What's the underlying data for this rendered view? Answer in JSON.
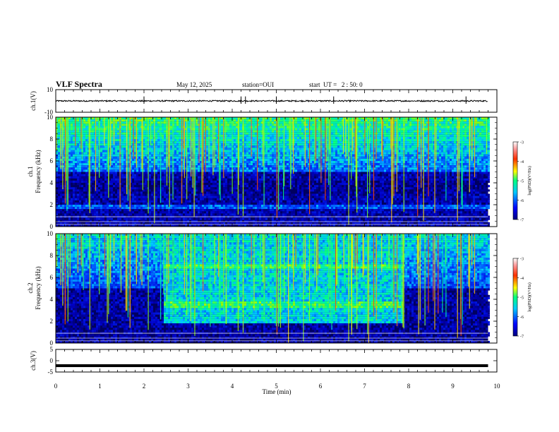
{
  "header": {
    "title": "VLF Spectra",
    "date": "May 12, 2025",
    "station": "station=OUI",
    "start": "start  UT =   2 : 50: 0"
  },
  "chart_data": [
    {
      "type": "line",
      "panel": "ch1-waveform",
      "ylabel": "ch.1(V)",
      "ylim": [
        -10,
        10
      ],
      "y_ticks": [
        "10",
        "-10"
      ],
      "xlim": [
        0,
        10
      ],
      "baseline": 0,
      "description_values": {
        "typical_amplitude": 0.6,
        "spikes_at_min": [
          2.0,
          4.2,
          4.3,
          5.0,
          6.3,
          9.3
        ]
      }
    },
    {
      "type": "heatmap",
      "panel": "ch1-spectrogram",
      "ylabel_line1": "ch.1",
      "ylabel_line2": "Frequency  (kHz)",
      "ylim": [
        0,
        10
      ],
      "y_ticks": [
        "0",
        "2",
        "4",
        "6",
        "8",
        "10"
      ],
      "xlim": [
        0,
        10
      ],
      "data_end_min": 9.8,
      "colorbar": {
        "label": "log(PSD)(V²/Hz)",
        "range": [
          -7,
          -3
        ],
        "ticks": [
          "-3",
          "-4",
          "-5",
          "-6",
          "-7"
        ]
      },
      "features": {
        "hiss_band_khz": [
          5,
          10
        ],
        "lower_band_khz": [
          1.5,
          2.0
        ]
      }
    },
    {
      "type": "heatmap",
      "panel": "ch2-spectrogram",
      "ylabel_line1": "ch.2",
      "ylabel_line2": "Frequency  (kHz)",
      "ylim": [
        0,
        10
      ],
      "y_ticks": [
        "0",
        "2",
        "4",
        "6",
        "8",
        "10"
      ],
      "xlim": [
        0,
        10
      ],
      "data_end_min": 9.8,
      "colorbar": {
        "label": "log(PSD)(V²/Hz)",
        "range": [
          -7,
          -3
        ],
        "ticks": [
          "-3",
          "-4",
          "-5",
          "-6",
          "-7"
        ]
      },
      "features": {
        "emission_start_min": 2.4,
        "emission_end_min": 7.85,
        "emission_band_khz": [
          1.8,
          9.0
        ],
        "line_khz": [
          3.5,
          7.0
        ]
      }
    },
    {
      "type": "line",
      "panel": "ch3-waveform",
      "ylabel": "ch.3(V)",
      "ylim": [
        -5,
        5
      ],
      "y_ticks": [
        "5",
        "0",
        "-5"
      ],
      "xlim": [
        0,
        10
      ],
      "baseline": -2.2,
      "x_ticks": [
        "0",
        "1",
        "2",
        "3",
        "4",
        "5",
        "6",
        "7",
        "8",
        "9",
        "10"
      ],
      "xlabel": "Time  (min)"
    }
  ]
}
